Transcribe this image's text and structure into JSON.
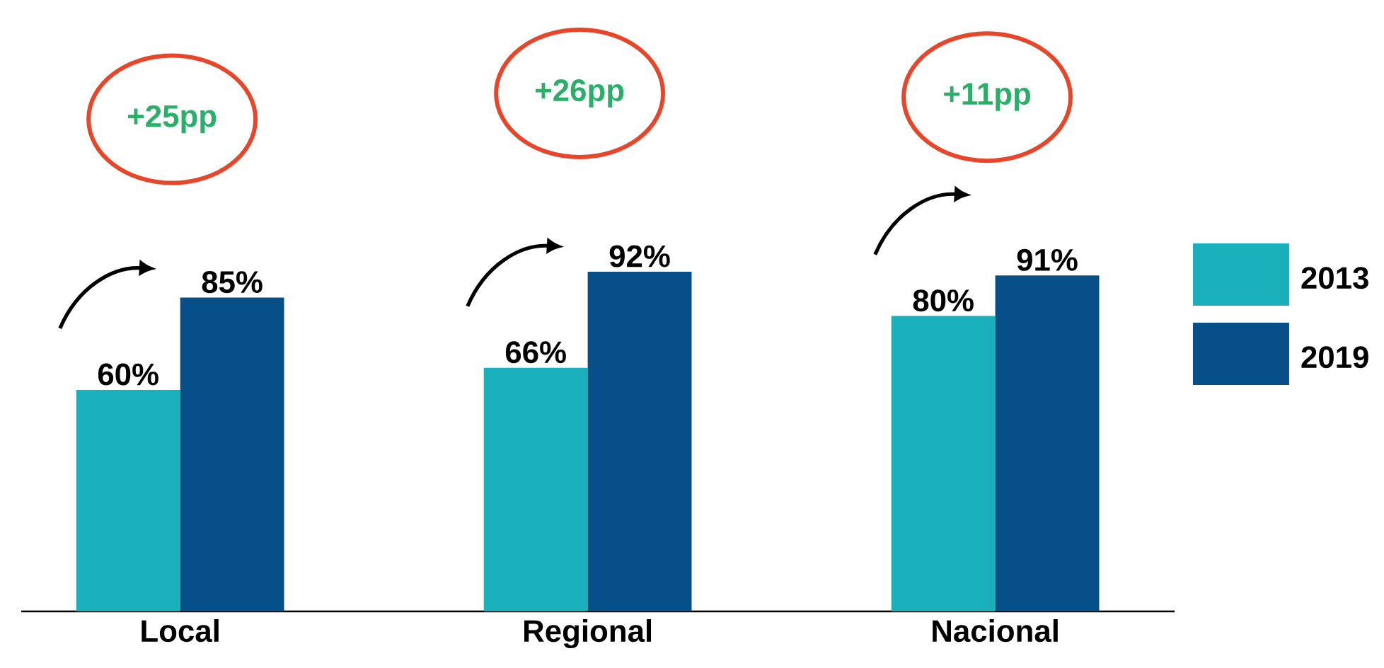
{
  "chart_data": {
    "type": "bar",
    "categories": [
      "Local",
      "Regional",
      "Nacional"
    ],
    "series": [
      {
        "name": "2013",
        "color": "#1ab0bb",
        "values": [
          60,
          66,
          80
        ],
        "value_labels": [
          "60%",
          "66%",
          "80%"
        ]
      },
      {
        "name": "2019",
        "color": "#074f88",
        "values": [
          85,
          92,
          91
        ],
        "value_labels": [
          "85%",
          "92%",
          "91%"
        ]
      }
    ],
    "annotations": [
      "+25pp",
      "+26pp",
      "+11pp"
    ],
    "legend": "right"
  }
}
